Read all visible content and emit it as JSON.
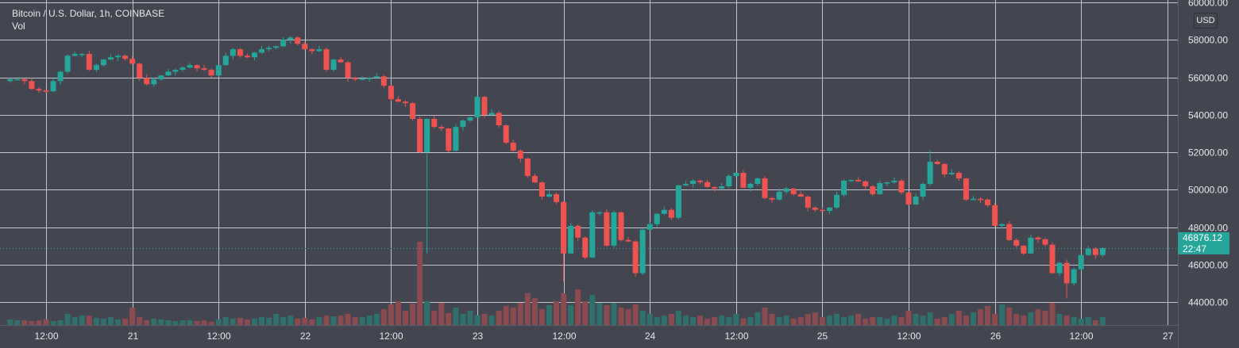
{
  "header": {
    "symbol_title": "Bitcoin / U.S. Dollar, 1h, COINBASE",
    "volume_label": "Vol"
  },
  "price_axis": {
    "currency_badge": "USD"
  },
  "last_price": {
    "value": "46876.12",
    "countdown": "22:47"
  },
  "colors": {
    "up": "#26a69a",
    "down": "#ef5350",
    "vol_up": "#2f6f6c",
    "vol_down": "#8a4a50",
    "background": "#434651",
    "grid": "#d8dbe3"
  },
  "chart_data": {
    "type": "candlestick",
    "title": "Bitcoin / U.S. Dollar, 1h, COINBASE",
    "interval_hours": 1,
    "first_candle_hour": 7,
    "ylim": [
      42700,
      60000
    ],
    "y_ticks": [
      "60000.00",
      "58000.00",
      "56000.00",
      "54000.00",
      "52000.00",
      "50000.00",
      "48000.00",
      "46000.00",
      "44000.00"
    ],
    "x_ticks": [
      {
        "label": "12:00",
        "hour": 12
      },
      {
        "label": "21",
        "hour": 24
      },
      {
        "label": "12:00",
        "hour": 36
      },
      {
        "label": "22",
        "hour": 48
      },
      {
        "label": "12:00",
        "hour": 60
      },
      {
        "label": "23",
        "hour": 72
      },
      {
        "label": "12:00",
        "hour": 84
      },
      {
        "label": "24",
        "hour": 96
      },
      {
        "label": "12:00",
        "hour": 108
      },
      {
        "label": "25",
        "hour": 120
      },
      {
        "label": "12:00",
        "hour": 132
      },
      {
        "label": "26",
        "hour": 144
      },
      {
        "label": "12:00",
        "hour": 156
      },
      {
        "label": "27",
        "hour": 168
      }
    ],
    "first_open": 55800,
    "close": [
      55900,
      55900,
      55800,
      55380,
      55300,
      55250,
      55800,
      56300,
      57150,
      57250,
      57250,
      56400,
      56650,
      56950,
      57070,
      57150,
      56990,
      56730,
      55970,
      55630,
      55890,
      56100,
      56300,
      56400,
      56520,
      56650,
      56480,
      56400,
      56100,
      56650,
      57150,
      57500,
      57150,
      57070,
      57320,
      57500,
      57580,
      57660,
      58000,
      58130,
      57790,
      57500,
      57400,
      57500,
      56400,
      56950,
      56800,
      55970,
      55890,
      55930,
      55970,
      56050,
      55550,
      54830,
      54700,
      54620,
      53780,
      52000,
      53780,
      53350,
      53270,
      52080,
      53350,
      53690,
      53860,
      54960,
      53990,
      54100,
      53440,
      52510,
      52080,
      51660,
      50730,
      50390,
      49630,
      49760,
      49340,
      46590,
      48070,
      47440,
      46380,
      48790,
      48790,
      47010,
      48790,
      47310,
      47230,
      45540,
      47860,
      48160,
      48710,
      48920,
      48500,
      50230,
      50310,
      50480,
      50400,
      50140,
      50060,
      50180,
      50730,
      50900,
      50100,
      50310,
      50600,
      49550,
      49470,
      49890,
      50060,
      49760,
      49630,
      49040,
      48920,
      48870,
      49040,
      49720,
      50480,
      50520,
      50440,
      50180,
      49760,
      50350,
      50390,
      50480,
      49850,
      49210,
      49630,
      50310,
      51490,
      51370,
      50820,
      50900,
      50600,
      49470,
      49510,
      49470,
      49170,
      48070,
      48160,
      47310,
      47010,
      46590,
      47440,
      47350,
      47060,
      45540,
      46090,
      45000,
      45750,
      46510,
      46850,
      46510,
      46876.12
    ],
    "wick_extremes": [
      {
        "index": 58,
        "low": 46600
      },
      {
        "index": 77,
        "low": 45100
      },
      {
        "index": 147,
        "low": 44200
      },
      {
        "index": 128,
        "high": 52100
      }
    ],
    "volume": [
      7,
      6,
      6,
      5,
      6,
      7,
      5,
      6,
      14,
      10,
      12,
      12,
      9,
      8,
      10,
      7,
      8,
      22,
      10,
      6,
      8,
      7,
      6,
      5,
      6,
      6,
      5,
      6,
      4,
      7,
      10,
      8,
      9,
      7,
      8,
      10,
      9,
      14,
      10,
      12,
      8,
      9,
      7,
      10,
      12,
      11,
      12,
      14,
      10,
      10,
      12,
      14,
      20,
      26,
      30,
      18,
      27,
      105,
      30,
      18,
      28,
      15,
      22,
      14,
      18,
      12,
      14,
      12,
      18,
      24,
      22,
      28,
      40,
      34,
      20,
      25,
      30,
      40,
      25,
      45,
      30,
      38,
      28,
      25,
      28,
      22,
      20,
      26,
      18,
      14,
      10,
      12,
      14,
      18,
      12,
      10,
      12,
      8,
      10,
      12,
      10,
      14,
      8,
      10,
      16,
      22,
      14,
      10,
      12,
      8,
      10,
      14,
      16,
      10,
      12,
      14,
      10,
      12,
      14,
      8,
      10,
      10,
      8,
      12,
      10,
      18,
      14,
      12,
      16,
      8,
      10,
      14,
      18,
      12,
      16,
      20,
      24,
      14,
      26,
      22,
      14,
      12,
      16,
      20,
      18,
      28,
      14,
      12,
      10,
      8,
      10,
      6,
      10
    ],
    "volume_units": "relative",
    "grid": true
  }
}
